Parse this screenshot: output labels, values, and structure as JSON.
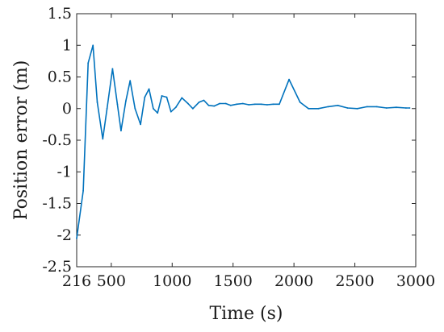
{
  "chart_data": {
    "type": "line",
    "title": "",
    "xlabel": "Time (s)",
    "ylabel": "Position error (m)",
    "xlim": [
      216,
      3000
    ],
    "ylim": [
      -2.5,
      1.5
    ],
    "xticks": [
      216,
      500,
      1000,
      1500,
      2000,
      2500,
      3000
    ],
    "xtick_labels": [
      "216",
      "500",
      "1000",
      "1500",
      "2000",
      "2500",
      "3000"
    ],
    "yticks": [
      -2.5,
      -2,
      -1.5,
      -1,
      -0.5,
      0,
      0.5,
      1,
      1.5
    ],
    "ytick_labels": [
      "-2.5",
      "-2",
      "-1.5",
      "-1",
      "-0.5",
      "0",
      "0.5",
      "1",
      "1.5"
    ],
    "grid": false,
    "box": true,
    "series": [
      {
        "color": "#0072BD",
        "points": [
          [
            216,
            -2.05
          ],
          [
            270,
            -1.3
          ],
          [
            310,
            0.72
          ],
          [
            350,
            1.0
          ],
          [
            385,
            0.1
          ],
          [
            430,
            -0.48
          ],
          [
            465,
            0.0
          ],
          [
            510,
            0.63
          ],
          [
            550,
            0.07
          ],
          [
            580,
            -0.35
          ],
          [
            620,
            0.12
          ],
          [
            655,
            0.44
          ],
          [
            695,
            0.0
          ],
          [
            740,
            -0.25
          ],
          [
            775,
            0.18
          ],
          [
            810,
            0.31
          ],
          [
            845,
            0.0
          ],
          [
            880,
            -0.07
          ],
          [
            915,
            0.2
          ],
          [
            955,
            0.18
          ],
          [
            990,
            -0.05
          ],
          [
            1030,
            0.02
          ],
          [
            1080,
            0.17
          ],
          [
            1130,
            0.08
          ],
          [
            1170,
            0.0
          ],
          [
            1220,
            0.1
          ],
          [
            1260,
            0.13
          ],
          [
            1300,
            0.05
          ],
          [
            1345,
            0.04
          ],
          [
            1390,
            0.08
          ],
          [
            1440,
            0.08
          ],
          [
            1480,
            0.05
          ],
          [
            1530,
            0.07
          ],
          [
            1580,
            0.08
          ],
          [
            1630,
            0.06
          ],
          [
            1680,
            0.07
          ],
          [
            1730,
            0.07
          ],
          [
            1780,
            0.06
          ],
          [
            1830,
            0.07
          ],
          [
            1880,
            0.07
          ],
          [
            1960,
            0.46
          ],
          [
            2050,
            0.1
          ],
          [
            2120,
            0.0
          ],
          [
            2200,
            0.0
          ],
          [
            2280,
            0.03
          ],
          [
            2360,
            0.05
          ],
          [
            2440,
            0.01
          ],
          [
            2520,
            0.0
          ],
          [
            2600,
            0.03
          ],
          [
            2680,
            0.03
          ],
          [
            2760,
            0.01
          ],
          [
            2840,
            0.02
          ],
          [
            2920,
            0.01
          ],
          [
            2950,
            0.01
          ]
        ]
      }
    ]
  }
}
